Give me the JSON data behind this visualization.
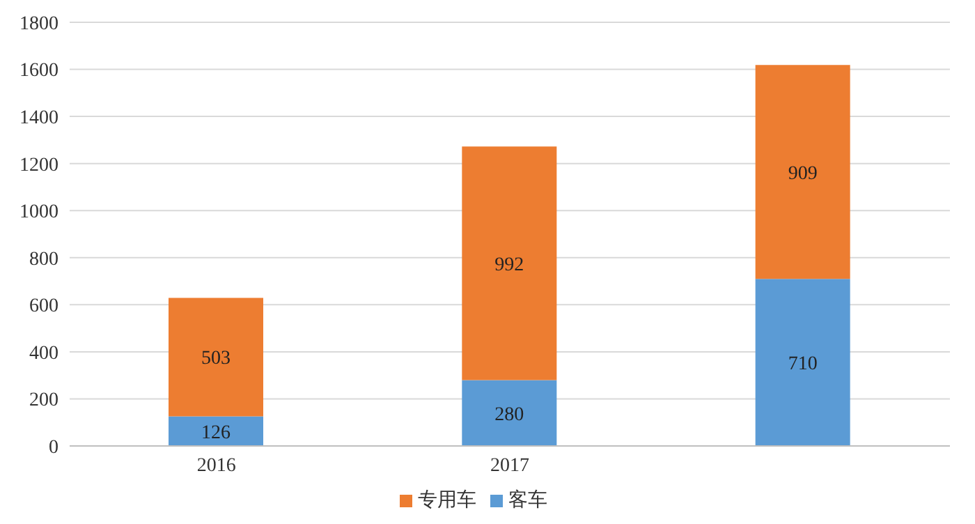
{
  "chart_data": {
    "type": "bar",
    "stacked": true,
    "categories": [
      "2016",
      "2017",
      null
    ],
    "series": [
      {
        "name": "客车",
        "color": "#5b9bd5",
        "values": [
          126,
          280,
          710
        ]
      },
      {
        "name": "专用车",
        "color": "#ed7d31",
        "values": [
          503,
          992,
          909
        ]
      }
    ],
    "ylim": [
      0,
      1800
    ],
    "yticks": [
      0,
      200,
      400,
      600,
      800,
      1000,
      1200,
      1400,
      1600,
      1800
    ],
    "grid": "y",
    "legend": "bottom",
    "data_labels": true
  }
}
